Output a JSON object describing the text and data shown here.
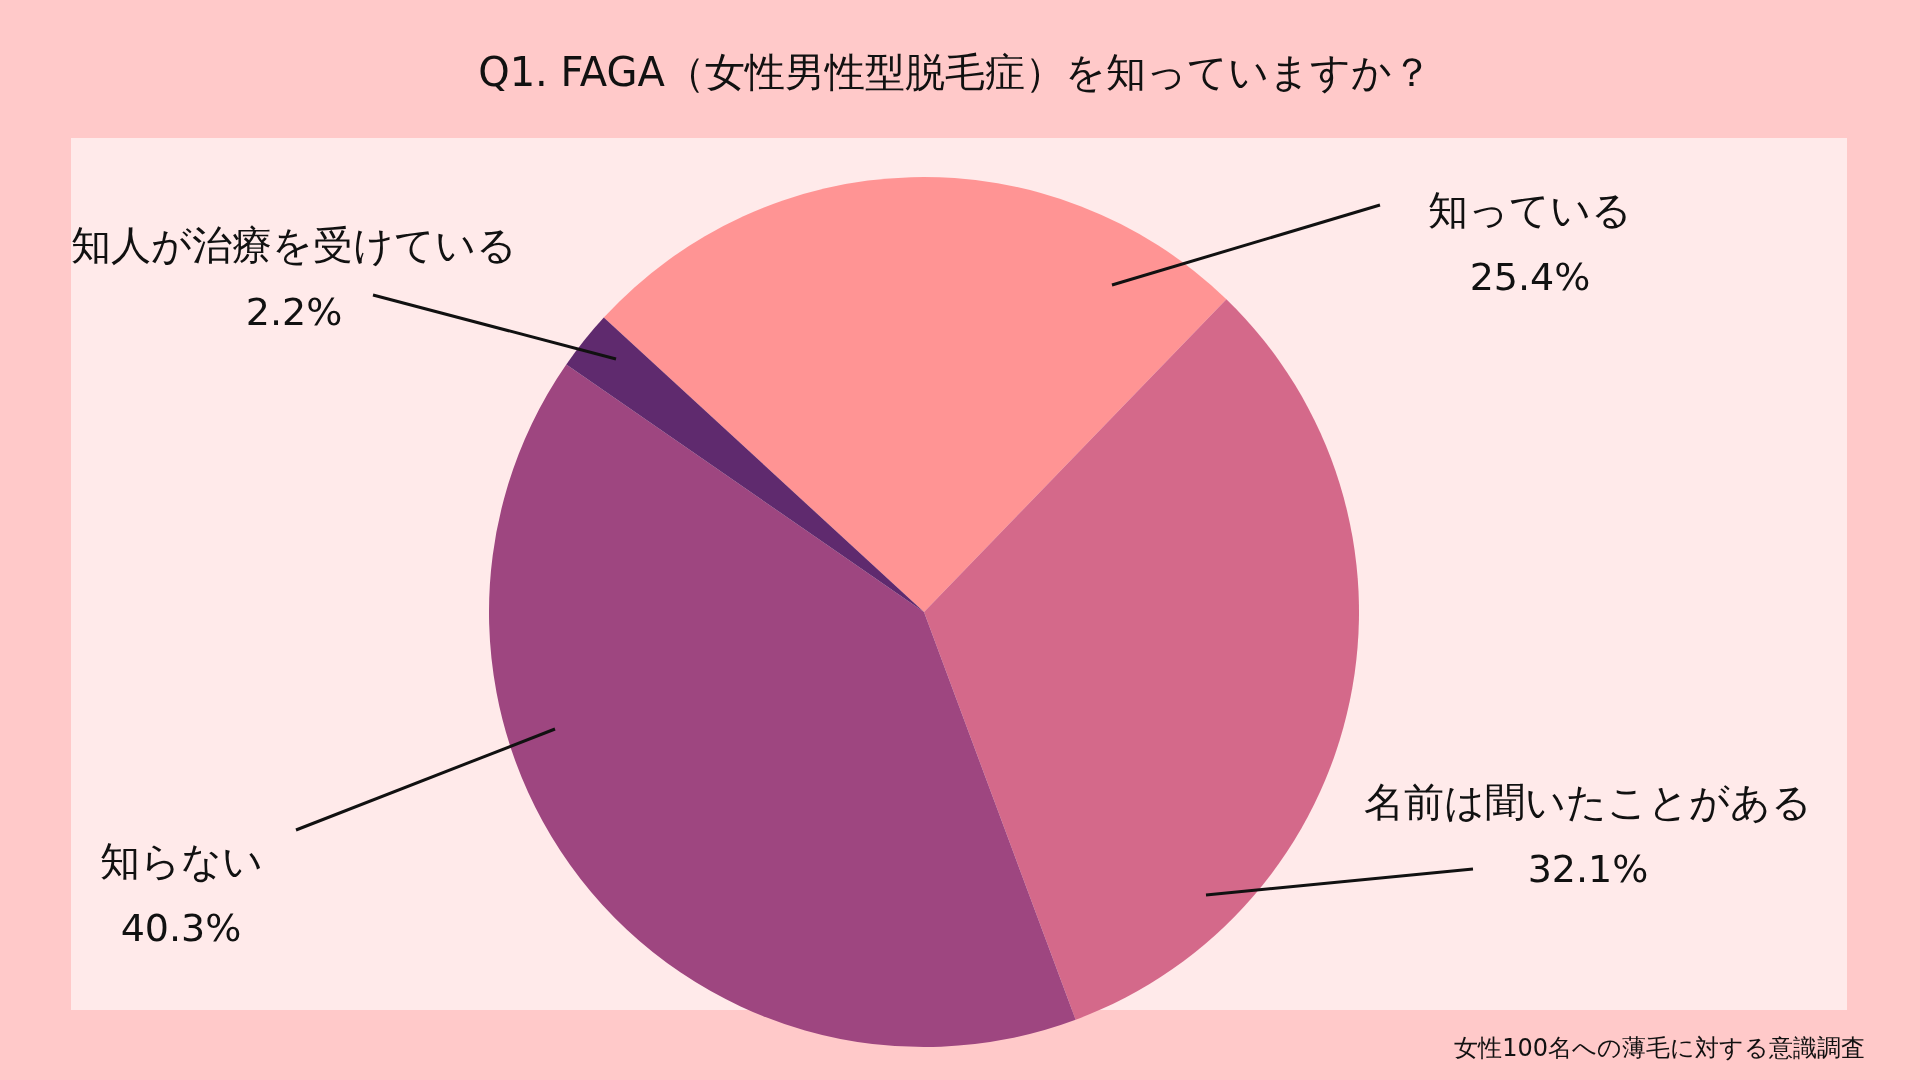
{
  "chart_data": {
    "type": "pie",
    "title": "Q1. FAGA（女性男性型脱毛症）を知っていますか？",
    "categories": [
      "知っている",
      "名前は聞いたことがある",
      "知らない",
      "知人が治療を受けている"
    ],
    "values": [
      25.4,
      32.1,
      40.3,
      2.2
    ],
    "value_labels": [
      "25.4%",
      "32.1%",
      "40.3%",
      "2.2%"
    ],
    "colors": [
      "#ff9494",
      "#d4698a",
      "#9e4680",
      "#5f2a6e"
    ],
    "annotations": [
      "女性100名への薄毛に対する意識調査"
    ]
  }
}
